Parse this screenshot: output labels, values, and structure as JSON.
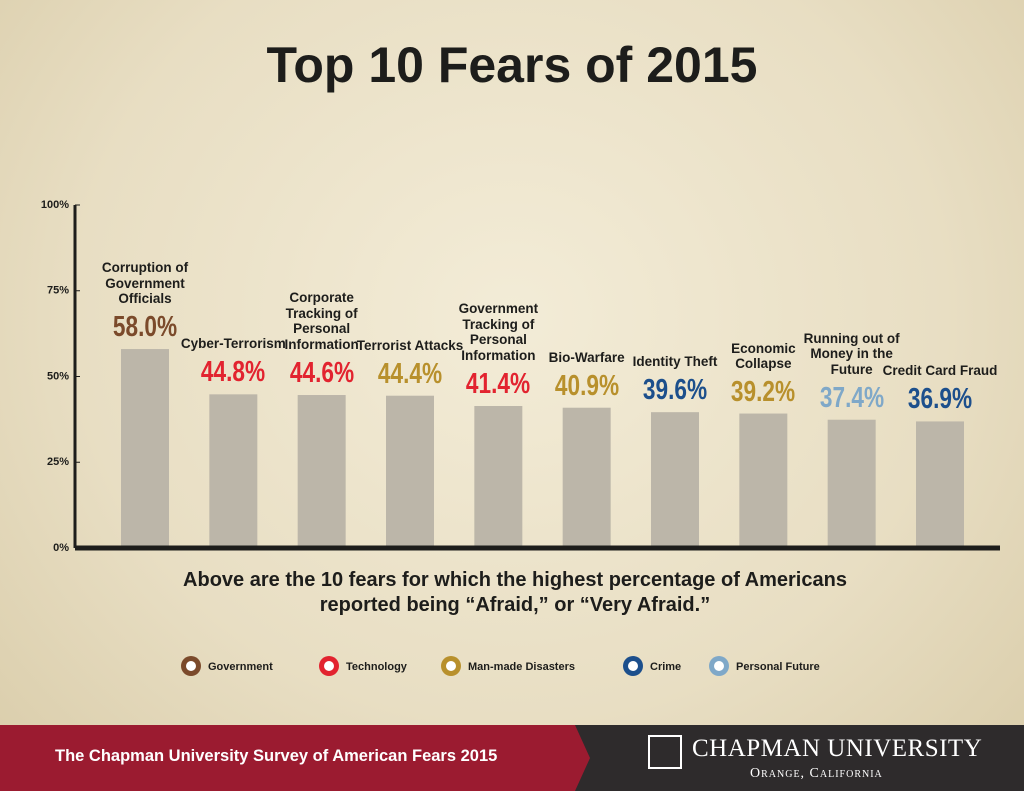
{
  "chart_data": {
    "type": "bar",
    "title": "Top 10 Fears of 2015",
    "categories": [
      "Corruption of Government Officials",
      "Cyber-Terrorism",
      "Corporate Tracking of Personal Information",
      "Terrorist Attacks",
      "Government Tracking of Personal Information",
      "Bio-Warfare",
      "Identity Theft",
      "Economic Collapse",
      "Running out of Money in the Future",
      "Credit Card Fraud"
    ],
    "series": [
      {
        "name": "Government",
        "color": "#7b4a2b",
        "values": [
          58.0,
          null,
          null,
          null,
          null,
          null,
          null,
          null,
          null,
          null
        ],
        "value_labels": [
          "58.0%",
          null,
          null,
          null,
          null,
          null,
          null,
          null,
          null,
          null
        ]
      },
      {
        "name": "Technology",
        "color": "#e2232f",
        "values": [
          null,
          44.8,
          44.6,
          null,
          41.4,
          null,
          null,
          null,
          null,
          null
        ],
        "value_labels": [
          null,
          "44.8%",
          "44.6%",
          null,
          "41.4%",
          null,
          null,
          null,
          null,
          null
        ]
      },
      {
        "name": "Man-made Disasters",
        "color": "#b8902c",
        "values": [
          null,
          null,
          null,
          44.4,
          null,
          40.9,
          null,
          39.2,
          null,
          null
        ],
        "value_labels": [
          null,
          null,
          null,
          "44.4%",
          null,
          "40.9%",
          null,
          "39.2%",
          null,
          null
        ]
      },
      {
        "name": "Crime",
        "color": "#1c4f8c",
        "values": [
          null,
          null,
          null,
          null,
          null,
          null,
          39.6,
          null,
          null,
          36.9
        ],
        "value_labels": [
          null,
          null,
          null,
          null,
          null,
          null,
          "39.6%",
          null,
          null,
          "36.9%"
        ]
      },
      {
        "name": "Personal Future",
        "color": "#7fa8c8",
        "values": [
          null,
          null,
          null,
          null,
          null,
          null,
          null,
          null,
          37.4,
          null
        ],
        "value_labels": [
          null,
          null,
          null,
          null,
          null,
          null,
          null,
          null,
          "37.4%",
          null
        ]
      }
    ],
    "bar_color": "#bcb6a9",
    "ylim": [
      0,
      100
    ],
    "yticks": [
      {
        "value": 0,
        "label": "0%"
      },
      {
        "value": 25,
        "label": "25%"
      },
      {
        "value": 50,
        "label": "50%"
      },
      {
        "value": 75,
        "label": "75%"
      },
      {
        "value": 100,
        "label": "100%"
      }
    ],
    "note": "Above are the 10 fears for which the highest percentage of Americans reported being “Afraid,” or “Very Afraid.”",
    "footer": "The Chapman University Survey of American Fears 2015",
    "brand": "Chapman University",
    "brand_location": "Orange, California"
  }
}
